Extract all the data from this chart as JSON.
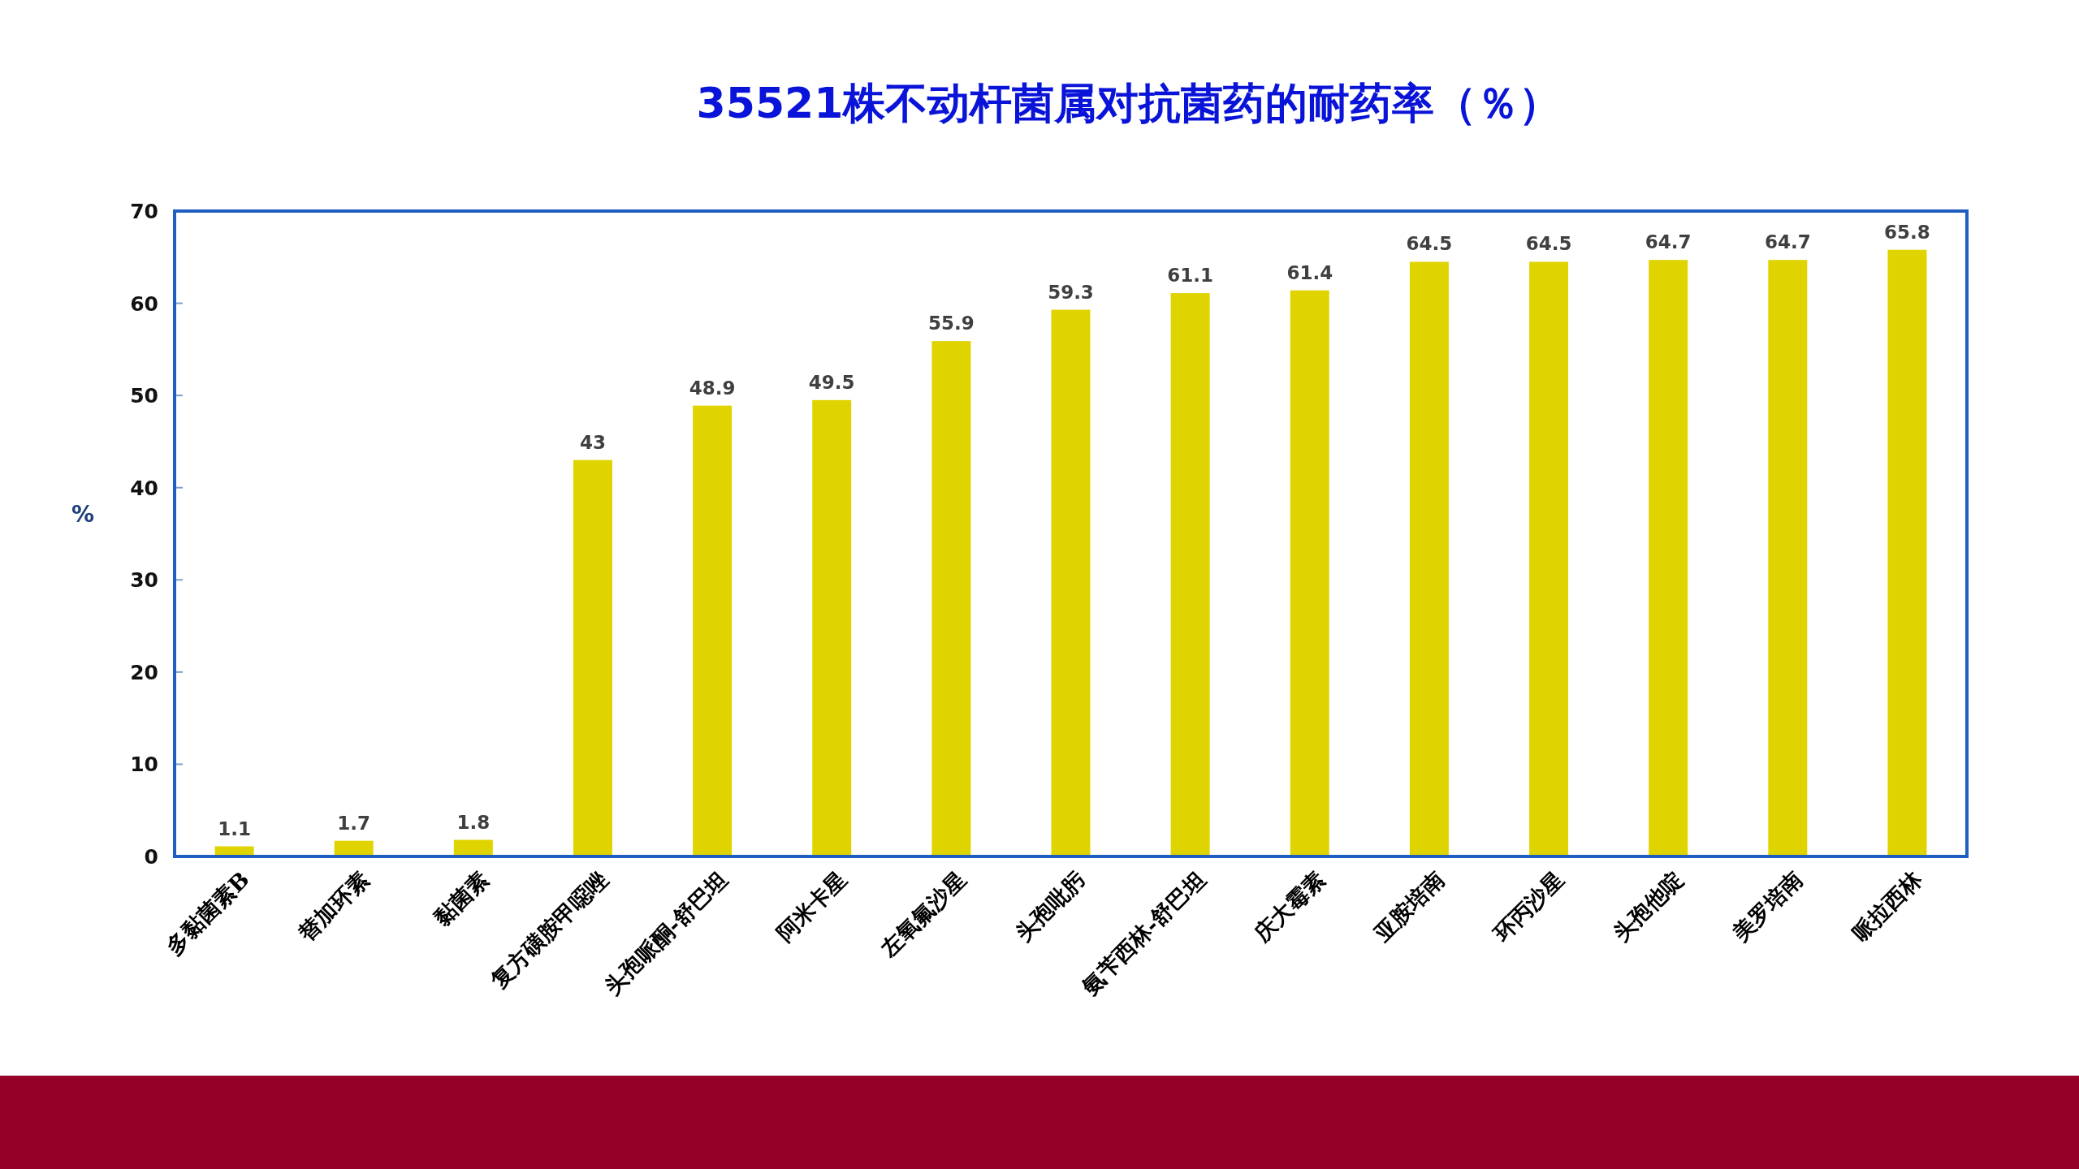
{
  "chart_data": {
    "type": "bar",
    "title": "35521株不动杆菌属对抗菌药的耐药率（％）",
    "ylabel": "%",
    "categories": [
      "多黏菌素B",
      "替加环素",
      "黏菌素",
      "复方磺胺甲噁唑",
      "头孢哌酮-舒巴坦",
      "阿米卡星",
      "左氧氟沙星",
      "头孢吡肟",
      "氨苄西林-舒巴坦",
      "庆大霉素",
      "亚胺培南",
      "环丙沙星",
      "头孢他啶",
      "美罗培南",
      "哌拉西林"
    ],
    "values": [
      1.1,
      1.7,
      1.8,
      43,
      48.9,
      49.5,
      55.9,
      59.3,
      61.1,
      61.4,
      64.5,
      64.5,
      64.7,
      64.7,
      65.8
    ],
    "color": "#e0d400",
    "ylim": [
      0,
      70
    ],
    "yticks": [
      0,
      10,
      20,
      30,
      40,
      50,
      60,
      70
    ],
    "data_labels": true
  }
}
